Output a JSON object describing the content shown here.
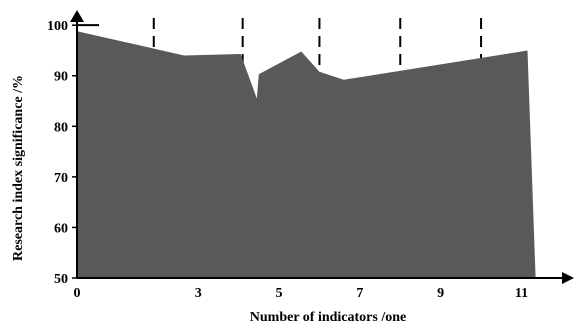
{
  "chart_data": {
    "type": "area",
    "title": "",
    "xlabel": "Number of indicators /one",
    "ylabel": "Research index significance /%",
    "xlim": [
      0,
      12.3
    ],
    "ylim": [
      50,
      103
    ],
    "x_ticks": [
      {
        "value": 0,
        "label": "0"
      },
      {
        "value": 3,
        "label": "3"
      },
      {
        "value": 5,
        "label": "5"
      },
      {
        "value": 7,
        "label": "7"
      },
      {
        "value": 9,
        "label": "9"
      },
      {
        "value": 11,
        "label": "11"
      }
    ],
    "y_ticks": [
      {
        "value": 50,
        "label": "50"
      },
      {
        "value": 60,
        "label": "60"
      },
      {
        "value": 70,
        "label": "70"
      },
      {
        "value": 80,
        "label": "80"
      },
      {
        "value": 90,
        "label": "90"
      },
      {
        "value": 100,
        "label": "100"
      }
    ],
    "series": [
      {
        "x": [
          0,
          2.65,
          4.05,
          4.45,
          4.5,
          5.55,
          6.0,
          6.6,
          11.15,
          11.35
        ],
        "y": [
          98.8,
          94.0,
          94.3,
          85.5,
          90.3,
          94.8,
          90.8,
          89.2,
          95.0,
          50.0
        ]
      }
    ],
    "dashed_markers_x": [
      1.9,
      4.1,
      6.0,
      8.0,
      10.0
    ],
    "colors": {
      "fill": "#595959",
      "axis": "#000000"
    }
  }
}
